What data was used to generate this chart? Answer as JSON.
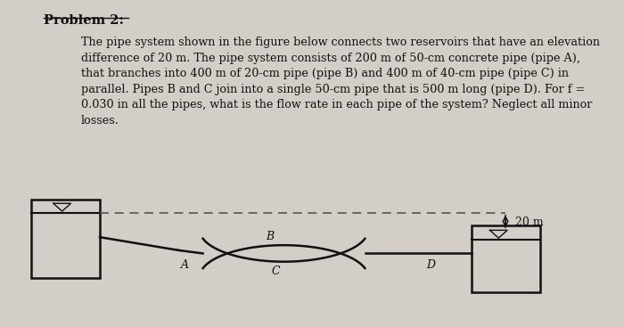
{
  "title": "Problem 2:",
  "body_text": "The pipe system shown in the figure below connects two reservoirs that have an elevation\ndifference of 20 m. The pipe system consists of 200 m of 50-cm concrete pipe (pipe A),\nthat branches into 400 m of 20-cm pipe (pipe B) and 400 m of 40-cm pipe (pipe C) in\nparallel. Pipes B and C join into a single 50-cm pipe that is 500 m long (pipe D). For f =\n0.030 in all the pipes, what is the flow rate in each pipe of the system? Neglect all minor\nlosses.",
  "background_color": "#d4cec8",
  "text_color": "#111111",
  "fig_bg": "#d4cec8",
  "label_A": "A",
  "label_B": "B",
  "label_C": "C",
  "label_D": "D",
  "label_20m": "20 m",
  "dashed_line_color": "#555555",
  "pipe_color": "#111111",
  "reservoir_color": "#111111"
}
